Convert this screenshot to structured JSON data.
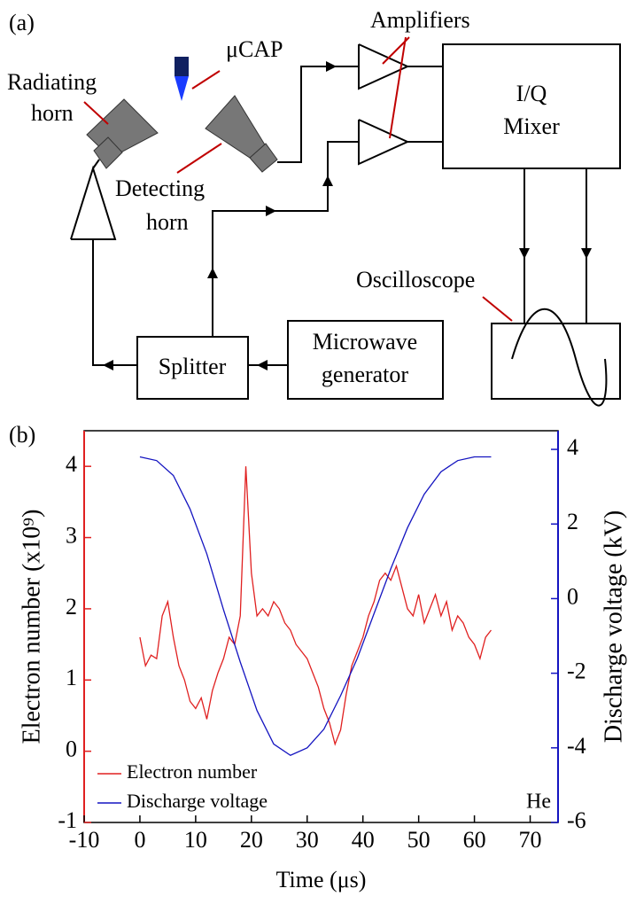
{
  "diagram": {
    "panel_label": "(a)",
    "labels": {
      "ucap": "μCAP",
      "amplifiers": "Amplifiers",
      "radiating_horn": [
        "Radiating",
        "horn"
      ],
      "detecting_horn": [
        "Detecting",
        "horn"
      ],
      "mixer": [
        "I/Q",
        "Mixer"
      ],
      "oscilloscope": "Oscilloscope",
      "splitter": "Splitter",
      "generator": [
        "Microwave",
        "generator"
      ]
    }
  },
  "chart_data": {
    "type": "line",
    "panel_label": "(b)",
    "xlabel": "Time (μs)",
    "ylabel": "Electron number (x10⁹)",
    "y2label": "Discharge voltage (kV)",
    "annotation": "He",
    "legend": "lower left",
    "xlim": [
      -10,
      75
    ],
    "xticks": [
      -10,
      0,
      10,
      20,
      30,
      40,
      50,
      60,
      70
    ],
    "ylim": [
      -1,
      4.5
    ],
    "yticks": [
      -1,
      0,
      1,
      2,
      3,
      4
    ],
    "y2lim": [
      -6,
      4.5
    ],
    "y2ticks": [
      -6,
      -4,
      -2,
      0,
      2,
      4
    ],
    "series": [
      {
        "name": "Electron number",
        "color": "#e02020",
        "x": [
          0,
          1,
          2,
          3,
          4,
          5,
          6,
          7,
          8,
          9,
          10,
          11,
          12,
          13,
          14,
          15,
          16,
          17,
          18,
          19,
          20,
          21,
          22,
          23,
          24,
          25,
          26,
          27,
          28,
          29,
          30,
          31,
          32,
          33,
          34,
          35,
          36,
          37,
          38,
          39,
          40,
          41,
          42,
          43,
          44,
          45,
          46,
          47,
          48,
          49,
          50,
          51,
          52,
          53,
          54,
          55,
          56,
          57,
          58,
          59,
          60,
          61,
          62,
          63
        ],
        "values": [
          1.6,
          1.2,
          1.35,
          1.3,
          1.9,
          2.1,
          1.6,
          1.2,
          1.0,
          0.7,
          0.6,
          0.75,
          0.45,
          0.85,
          1.1,
          1.3,
          1.6,
          1.5,
          1.9,
          4.0,
          2.5,
          1.9,
          2.0,
          1.9,
          2.1,
          2.0,
          1.8,
          1.7,
          1.5,
          1.4,
          1.3,
          1.1,
          0.9,
          0.6,
          0.4,
          0.1,
          0.3,
          0.8,
          1.2,
          1.4,
          1.6,
          1.9,
          2.1,
          2.4,
          2.5,
          2.4,
          2.6,
          2.3,
          2.0,
          1.9,
          2.2,
          1.8,
          2.0,
          2.2,
          1.9,
          2.1,
          1.7,
          1.9,
          1.8,
          1.6,
          1.5,
          1.3,
          1.6,
          1.7
        ]
      },
      {
        "name": "Discharge voltage",
        "color": "#1414c0",
        "axis": "y2",
        "x": [
          0,
          3,
          6,
          9,
          12,
          15,
          18,
          21,
          24,
          27,
          30,
          33,
          36,
          39,
          42,
          45,
          48,
          51,
          54,
          57,
          60,
          63
        ],
        "values": [
          3.8,
          3.7,
          3.3,
          2.4,
          1.2,
          -0.3,
          -1.7,
          -3.0,
          -3.9,
          -4.2,
          -4.0,
          -3.5,
          -2.6,
          -1.6,
          -0.4,
          0.8,
          1.9,
          2.8,
          3.4,
          3.7,
          3.8,
          3.8
        ]
      }
    ]
  }
}
